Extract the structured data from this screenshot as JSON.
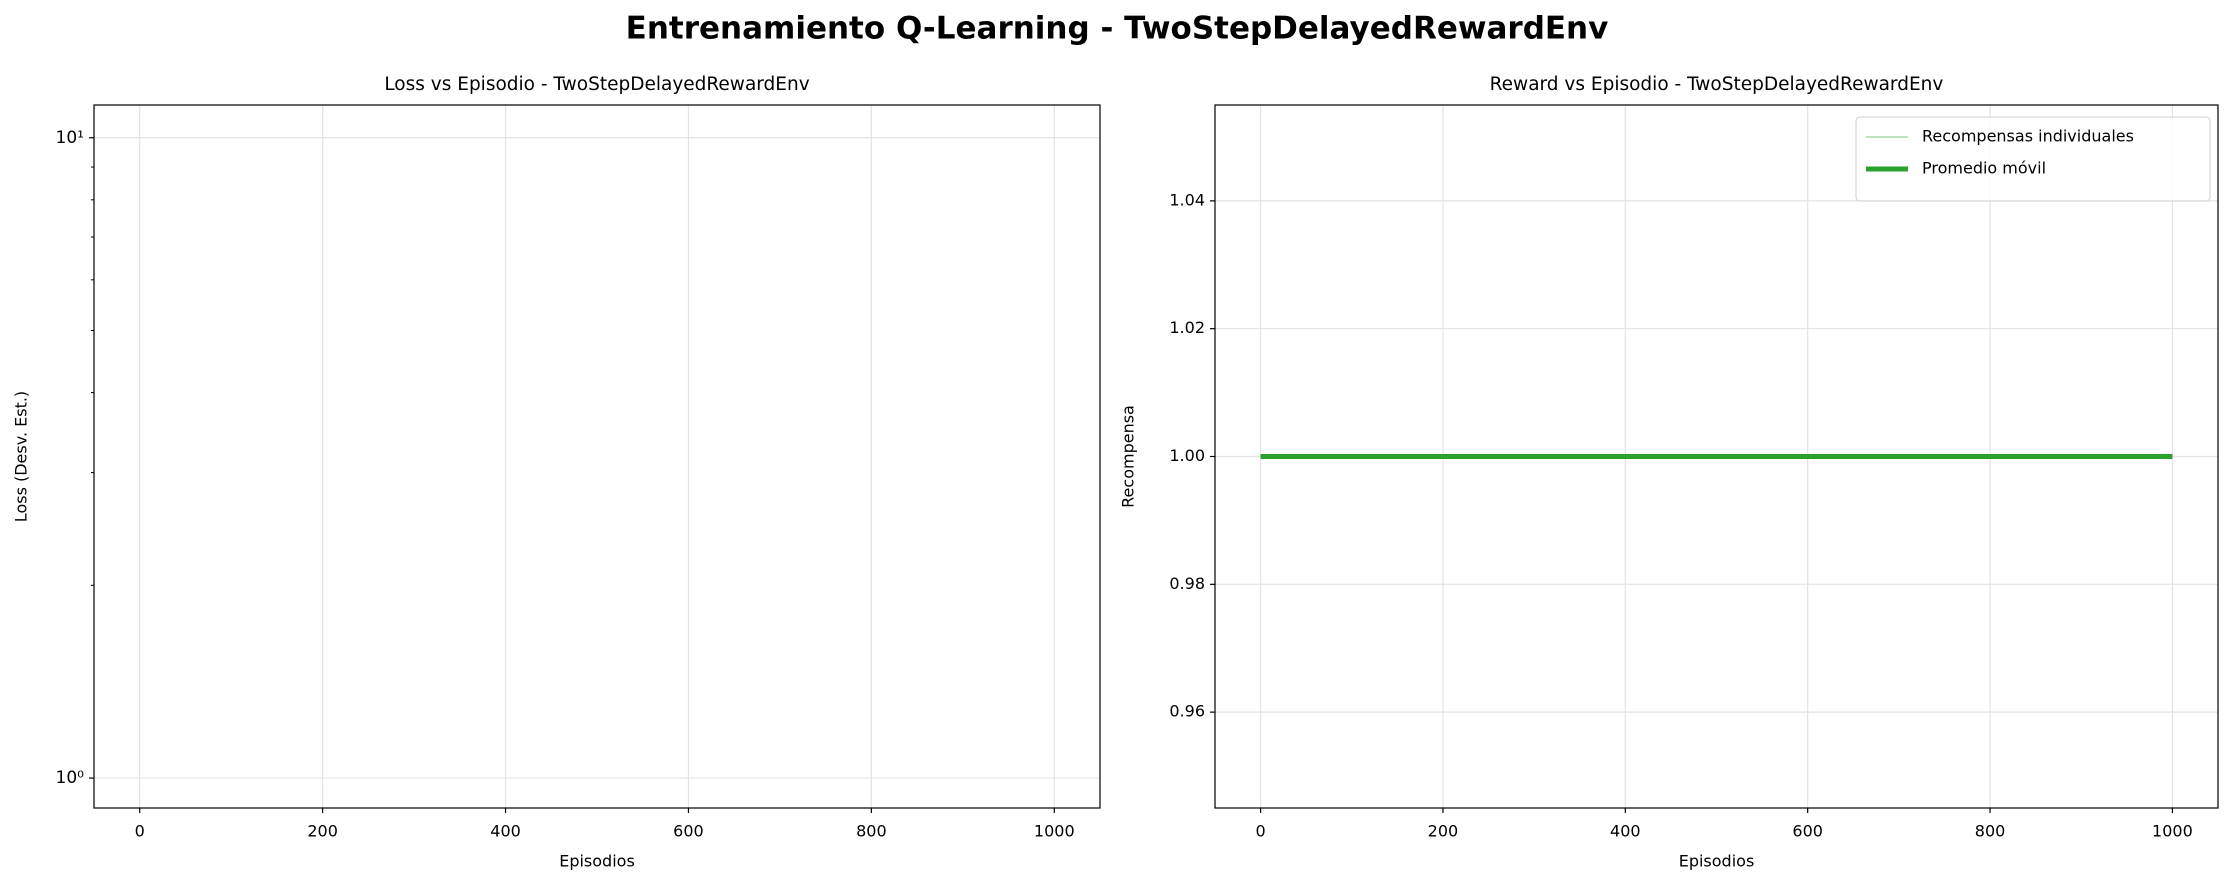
{
  "title": "Entrenamiento Q-Learning - TwoStepDelayedRewardEnv",
  "chart_data": [
    {
      "type": "line",
      "title": "Loss vs Episodio - TwoStepDelayedRewardEnv",
      "xlabel": "Episodios",
      "ylabel": "Loss (Desv. Est.)",
      "xlim": [
        -50,
        1050
      ],
      "xticks": [
        0,
        200,
        400,
        600,
        800,
        1000
      ],
      "ylim": [
        0.898,
        11.25
      ],
      "yscale": "log",
      "yticks": [
        {
          "value": 1,
          "label": "10⁰"
        },
        {
          "value": 10,
          "label": "10¹"
        }
      ],
      "yminorticks": [
        2,
        3,
        4,
        5,
        6,
        7,
        8,
        9
      ],
      "grid": true,
      "series": []
    },
    {
      "type": "line",
      "title": "Reward vs Episodio - TwoStepDelayedRewardEnv",
      "xlabel": "Episodios",
      "ylabel": "Recompensa",
      "xlim": [
        -50,
        1050
      ],
      "xticks": [
        0,
        200,
        400,
        600,
        800,
        1000
      ],
      "ylim": [
        0.945,
        1.055
      ],
      "yticks": [
        0.96,
        0.98,
        {
          "value": 1,
          "label": "1.00"
        },
        1.02,
        1.04
      ],
      "grid": true,
      "legend": "upper right",
      "series": [
        {
          "name": "Recompensas individuales",
          "color": "#2ca02c",
          "opacity": 0.4,
          "width": 1.5,
          "x": [
            0,
            1000
          ],
          "values": [
            1,
            1
          ]
        },
        {
          "name": "Promedio móvil",
          "color": "#2ca02c",
          "opacity": 1,
          "width": 5,
          "x": [
            0,
            1000
          ],
          "values": [
            1,
            1
          ]
        }
      ]
    }
  ]
}
